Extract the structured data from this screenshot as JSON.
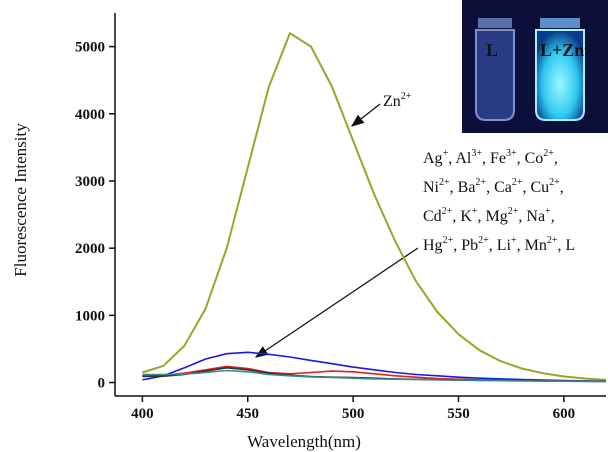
{
  "chart_data": {
    "type": "line",
    "x_label": "Wavelength(nm)",
    "y_label": "Fluorescence Intensity",
    "xlim": [
      387,
      620
    ],
    "ylim": [
      -200,
      5500
    ],
    "xticks": [
      400,
      450,
      500,
      550,
      600
    ],
    "yticks": [
      0,
      1000,
      2000,
      3000,
      4000,
      5000
    ],
    "x": [
      400,
      410,
      420,
      430,
      440,
      450,
      460,
      470,
      480,
      490,
      500,
      510,
      520,
      530,
      540,
      550,
      560,
      570,
      580,
      590,
      600,
      610,
      620
    ],
    "series": [
      {
        "color": "#9aa52a",
        "values": [
          150,
          250,
          550,
          1100,
          2000,
          3200,
          4400,
          5200,
          5000,
          4400,
          3600,
          2800,
          2100,
          1500,
          1050,
          720,
          480,
          320,
          210,
          140,
          90,
          60,
          40
        ]
      },
      {
        "color": "#1a1adb",
        "values": [
          40,
          100,
          220,
          350,
          430,
          450,
          420,
          380,
          330,
          280,
          230,
          190,
          150,
          120,
          100,
          80,
          65,
          55,
          45,
          38,
          30,
          25,
          20
        ]
      },
      {
        "color": "#e02020",
        "values": [
          100,
          110,
          140,
          190,
          240,
          210,
          150,
          130,
          150,
          170,
          160,
          130,
          100,
          80,
          60,
          50,
          40,
          35,
          30,
          25,
          22,
          20,
          18
        ]
      },
      {
        "color": "#333333",
        "values": [
          90,
          95,
          120,
          170,
          220,
          190,
          140,
          110,
          90,
          80,
          75,
          65,
          55,
          48,
          42,
          38,
          33,
          30,
          27,
          24,
          22,
          20,
          18
        ]
      },
      {
        "color": "#3a8a8a",
        "values": [
          120,
          120,
          125,
          150,
          180,
          160,
          120,
          100,
          85,
          75,
          65,
          55,
          50,
          45,
          40,
          35,
          30,
          28,
          25,
          23,
          20,
          18,
          16
        ]
      }
    ],
    "zn_label": [
      {
        "text": "Zn",
        "sup": "2+"
      }
    ],
    "ion_list": [
      [
        {
          "text": "Ag",
          "sup": "+"
        },
        {
          "text": ", Al",
          "sup": "3+"
        },
        {
          "text": ", Fe",
          "sup": "3+"
        },
        {
          "text": ", Co",
          "sup": "2+"
        },
        {
          "text": ","
        }
      ],
      [
        {
          "text": "Ni",
          "sup": "2+"
        },
        {
          "text": ", Ba",
          "sup": "2+"
        },
        {
          "text": ", Ca",
          "sup": "2+"
        },
        {
          "text": ", Cu",
          "sup": "2+"
        },
        {
          "text": ","
        }
      ],
      [
        {
          "text": "Cd",
          "sup": "2+"
        },
        {
          "text": ", K",
          "sup": "+"
        },
        {
          "text": ", Mg",
          "sup": "2+"
        },
        {
          "text": ", Na",
          "sup": "+"
        },
        {
          "text": ","
        }
      ],
      [
        {
          "text": "Hg",
          "sup": "2+"
        },
        {
          "text": ", Pb",
          "sup": "2+"
        },
        {
          "text": ", Li",
          "sup": "+"
        },
        {
          "text": ", Mn",
          "sup": "2+"
        },
        {
          "text": ", L"
        }
      ]
    ],
    "inset": {
      "left_label": [
        {
          "text": "L"
        }
      ],
      "right_label": [
        {
          "text": "L+Zn",
          "sup": "2+"
        }
      ]
    }
  }
}
